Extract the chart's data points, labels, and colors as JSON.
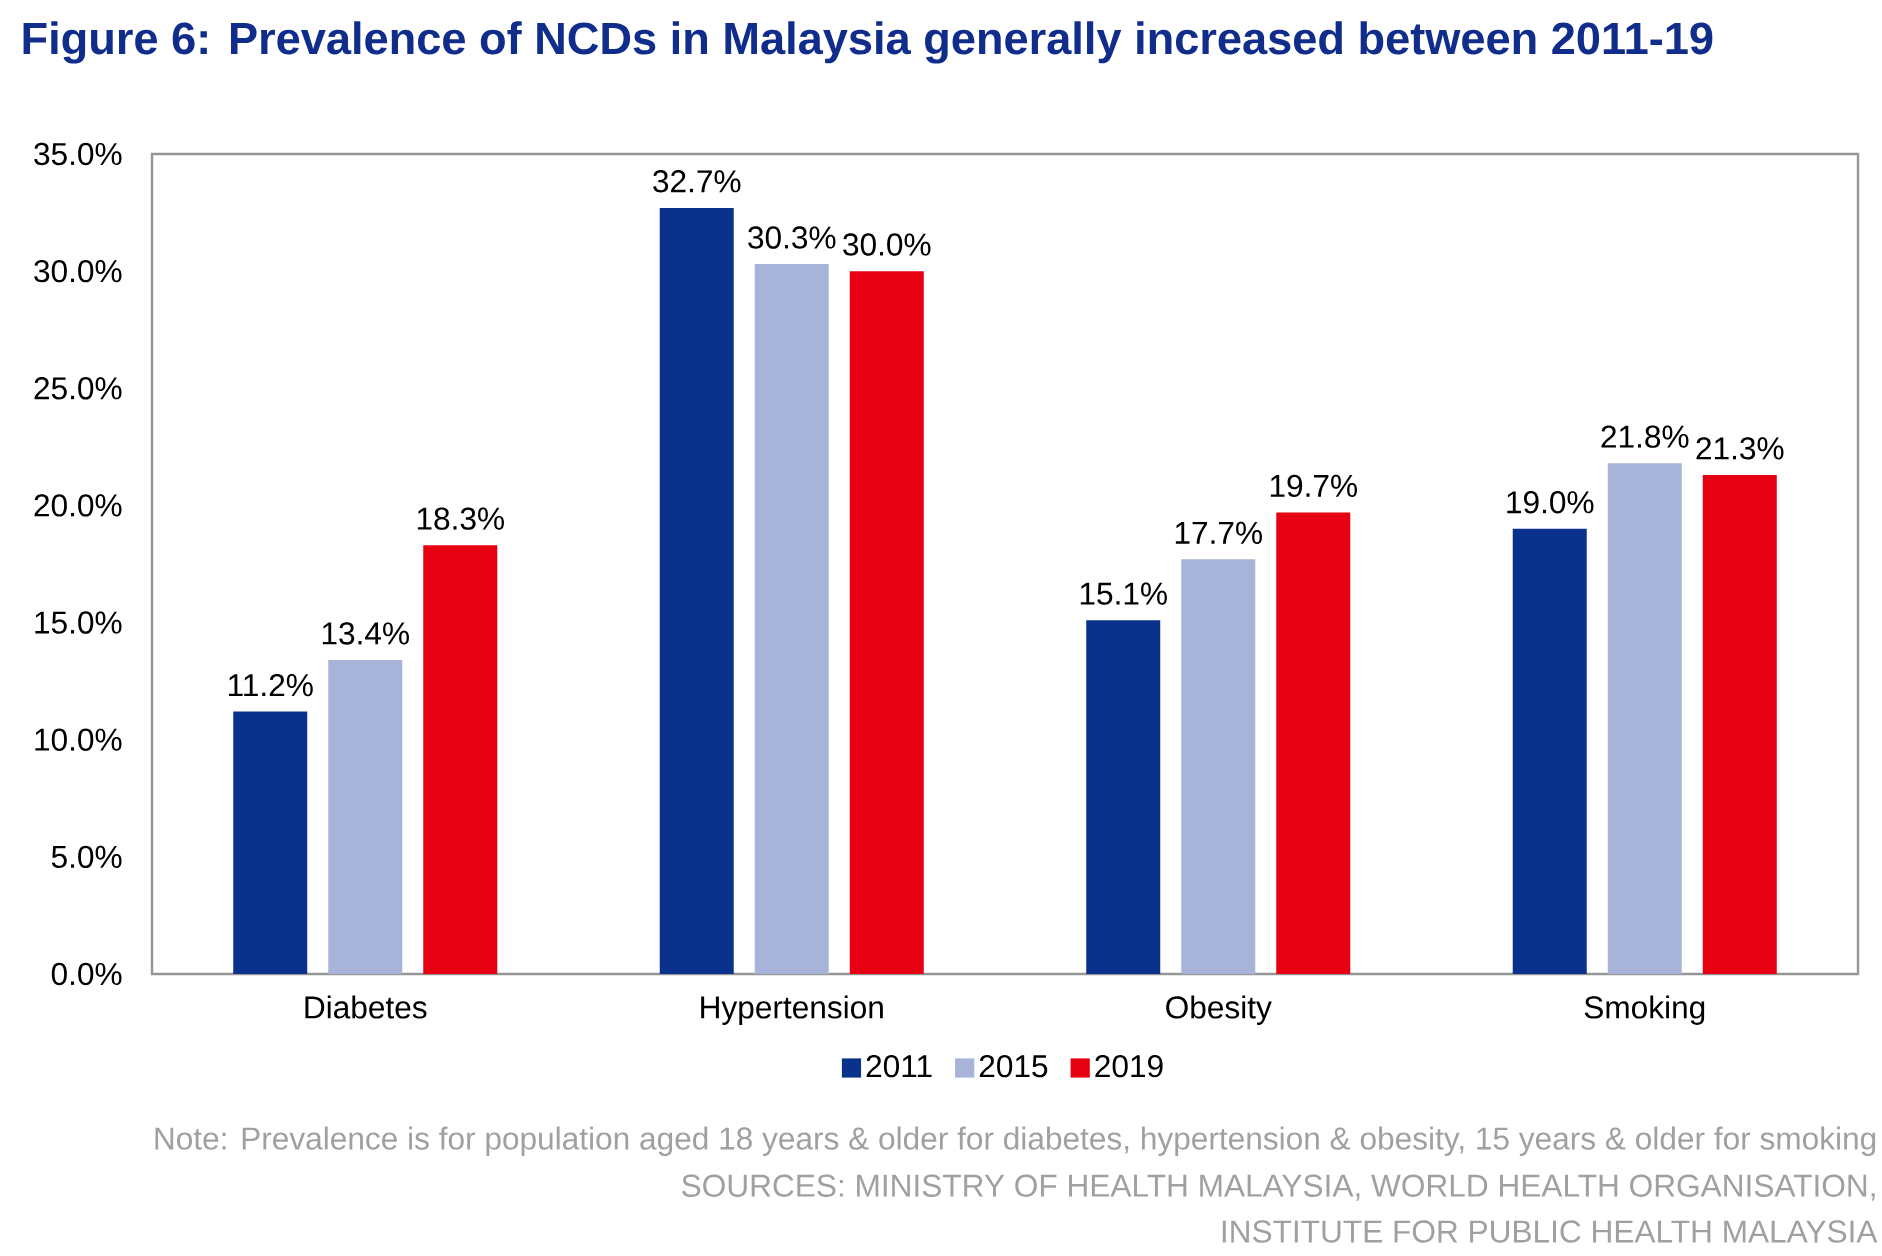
{
  "chart_data": {
    "type": "bar",
    "title": "Figure 6: Prevalence of NCDs in Malaysia generally increased between 2011-19",
    "categories": [
      "Diabetes",
      "Hypertension",
      "Obesity",
      "Smoking"
    ],
    "series": [
      {
        "name": "2011",
        "color": "#0a318c",
        "values": [
          11.2,
          32.7,
          15.1,
          19.0
        ],
        "value_labels": [
          "11.2%",
          "32.7%",
          "15.1%",
          "19.0%"
        ]
      },
      {
        "name": "2015",
        "color": "#a7b3d8",
        "values": [
          13.4,
          30.3,
          17.7,
          21.8
        ],
        "value_labels": [
          "13.4%",
          "30.3%",
          "17.7%",
          "21.8%"
        ]
      },
      {
        "name": "2019",
        "color": "#e60012",
        "values": [
          18.3,
          30.0,
          19.7,
          21.3
        ],
        "value_labels": [
          "18.3%",
          "30.0%",
          "19.7%",
          "21.3%"
        ]
      }
    ],
    "ylim": [
      0,
      35
    ],
    "yticks": [
      {
        "value": 0,
        "label": "0.0%"
      },
      {
        "value": 5,
        "label": "5.0%"
      },
      {
        "value": 10,
        "label": "10.0%"
      },
      {
        "value": 15,
        "label": "15.0%"
      },
      {
        "value": 20,
        "label": "20.0%"
      },
      {
        "value": 25,
        "label": "25.0%"
      },
      {
        "value": 30,
        "label": "30.0%"
      },
      {
        "value": 35,
        "label": "35.0%"
      }
    ],
    "legend": "bottom",
    "annotations": [
      "Note: Prevalence is for population aged 18 years & older for diabetes, hypertension & obesity, 15 years & older for smoking",
      "SOURCES: MINISTRY OF HEALTH MALAYSIA, WORLD HEALTH ORGANISATION, INSTITUTE FOR PUBLIC HEALTH MALAYSIA"
    ]
  }
}
